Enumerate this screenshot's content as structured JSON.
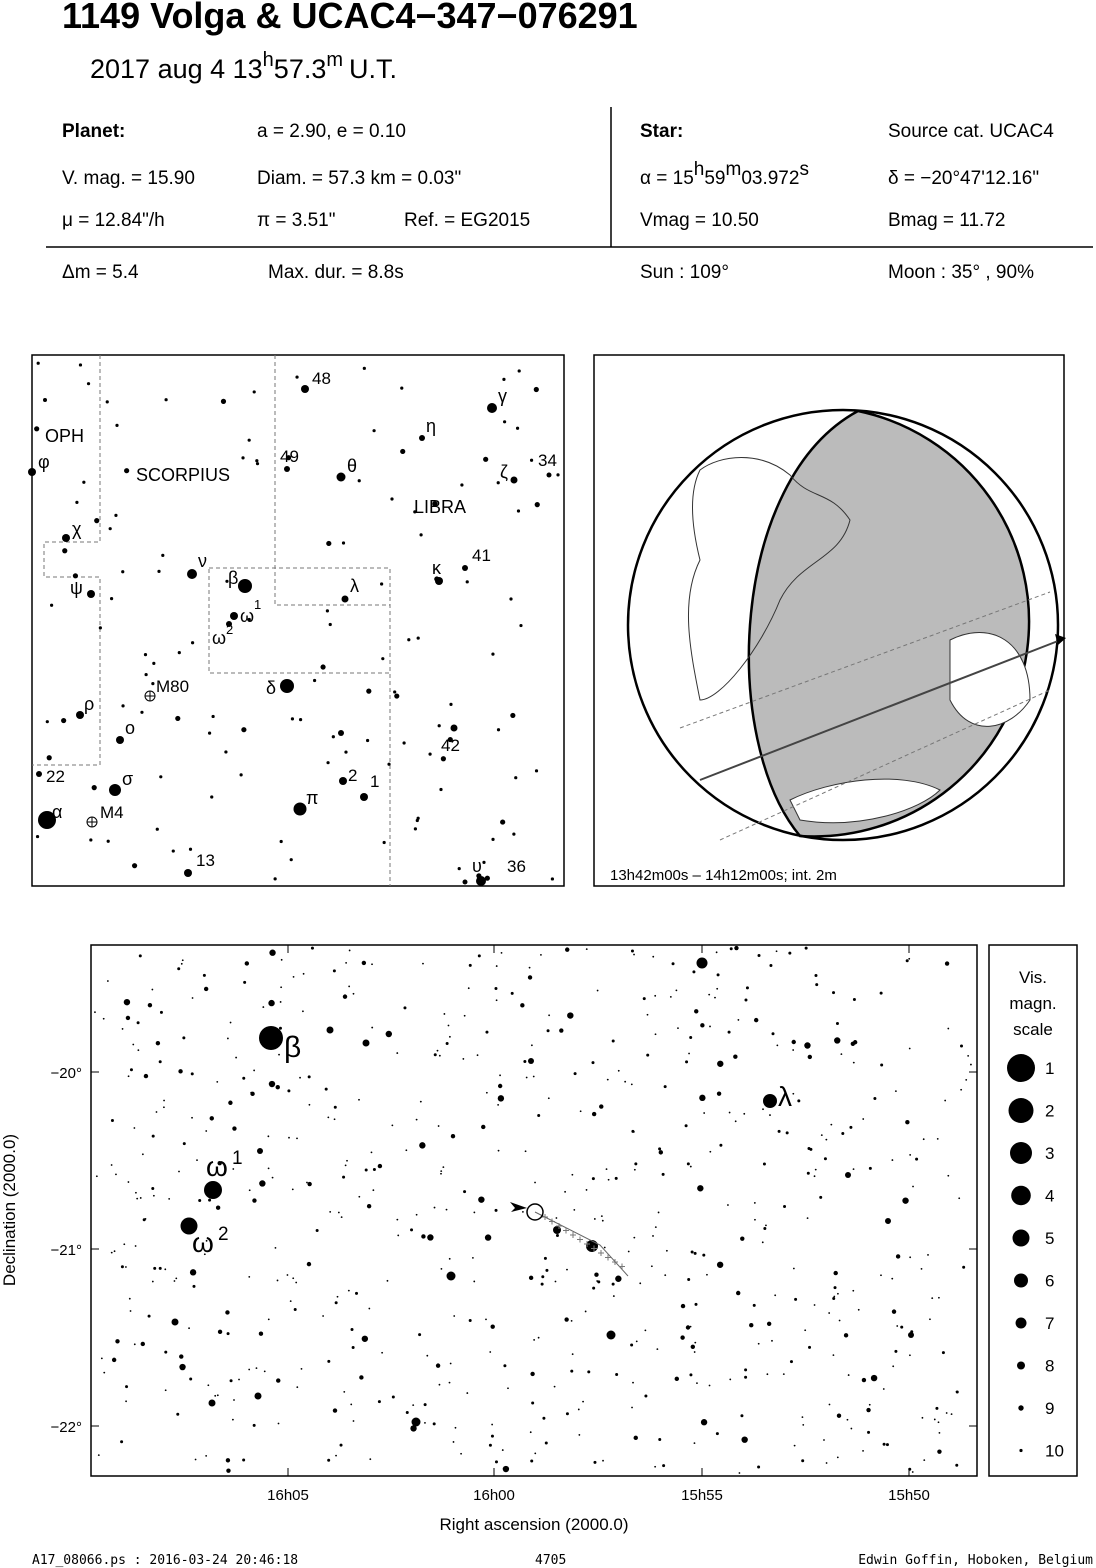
{
  "header": {
    "title": "1149 Volga  &  UCAC4−347−076291",
    "date": "2017 aug  4  13",
    "date_h": "h",
    "date_min": "57.3",
    "date_m": "m",
    "date_ut": "U.T."
  },
  "planet": {
    "heading": "Planet:",
    "orbit": "a = 2.90, e = 0.10",
    "vmag": "V. mag. = 15.90",
    "diam": "Diam. = 57.3 km = 0.03\"",
    "motion": "μ =  12.84\"/h",
    "parallax": "π =  3.51\"",
    "ref": "Ref. = EG2015"
  },
  "star": {
    "heading": "Star:",
    "source": "Source cat.  UCAC4",
    "ra": [
      "α = 15",
      "h",
      "59",
      "m",
      "03.972",
      "s"
    ],
    "dec": "δ = −20°47'12.16\"",
    "vmag": "Vmag = 10.50",
    "bmag": "Bmag = 11.72"
  },
  "event": {
    "delta_mag": "Δm = 5.4",
    "max_dur": "Max. dur. = 8.8s",
    "sun": "Sun : 109°",
    "moon": "Moon :  35° , 90%"
  },
  "finder": {
    "labels": [
      "OPH",
      "φ",
      "SCORPIUS",
      "LIBRA",
      "48",
      "γ",
      "η",
      "49",
      "θ",
      "ζ",
      "34",
      "χ",
      "ν",
      "β",
      "λ",
      "κ",
      "41",
      "ψ",
      "ω",
      "1",
      "ω",
      "2",
      "M80",
      "δ",
      "ρ",
      "ο",
      "42",
      "22",
      "σ",
      "2",
      "1",
      "π",
      "α",
      "M4",
      "13",
      "υ",
      "36"
    ]
  },
  "globe": {
    "caption": "13h42m00s – 14h12m00s; int.  2m"
  },
  "map": {
    "star_labels": [
      "β",
      "λ",
      "ω",
      "1",
      "ω",
      "2"
    ],
    "yticks": [
      "−20°",
      "−21°",
      "−22°"
    ],
    "xticks": [
      "16h05",
      "16h00",
      "15h55",
      "15h50"
    ],
    "x_title": "Right ascension (2000.0)",
    "y_title": "Declination (2000.0)"
  },
  "legend": {
    "title": [
      "Vis.",
      "magn.",
      "scale"
    ],
    "magnitudes": [
      "1",
      "2",
      "3",
      "4",
      "5",
      "6",
      "7",
      "8",
      "9",
      "10"
    ]
  },
  "footer": {
    "file": "A17_08066.ps : 2016-03-24 20:46:18",
    "number": "4705",
    "author": "Edwin Goffin, Hoboken, Belgium"
  }
}
